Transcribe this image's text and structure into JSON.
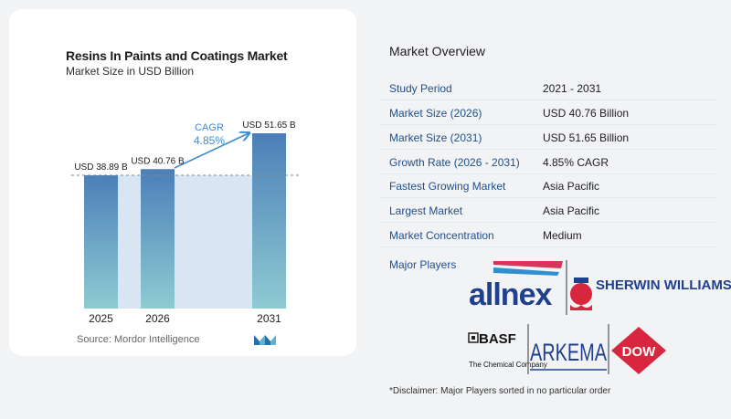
{
  "chart_data": {
    "type": "bar",
    "title": "Resins In Paints and Coatings Market",
    "subtitle": "Market Size in USD Billion",
    "categories": [
      "2025",
      "2026",
      "2031"
    ],
    "values": [
      38.89,
      40.76,
      51.65
    ],
    "value_labels": [
      "USD 38.89 B",
      "USD 40.76 B",
      "USD 51.65 B"
    ],
    "cagr_label": "CAGR",
    "cagr_value": "4.85%",
    "source": "Source:  Mordor Intelligence",
    "colors": {
      "bar_top": "#4c7fb8",
      "bar_bottom": "#8ecbd2",
      "band": "#d9e5f2",
      "arrow": "#3f8ccf"
    }
  },
  "overview": {
    "title": "Market Overview",
    "rows": [
      {
        "label": "Study Period",
        "value": "2021 - 2031"
      },
      {
        "label": "Market Size (2026)",
        "value": "USD 40.76 Billion"
      },
      {
        "label": "Market Size (2031)",
        "value": "USD 51.65 Billion"
      },
      {
        "label": "Growth Rate (2026 - 2031)",
        "value": "4.85% CAGR"
      },
      {
        "label": "Fastest Growing Market",
        "value": "Asia Pacific"
      },
      {
        "label": "Largest Market",
        "value": "Asia Pacific"
      },
      {
        "label": "Market Concentration",
        "value": "Medium"
      }
    ],
    "players_label": "Major Players",
    "players": [
      "allnex",
      "SHERWIN WILLIAMS.",
      "BASF",
      "The Chemical Company",
      "ARKEMA",
      "DOW"
    ],
    "disclaimer": "*Disclaimer: Major Players sorted in no particular order"
  }
}
